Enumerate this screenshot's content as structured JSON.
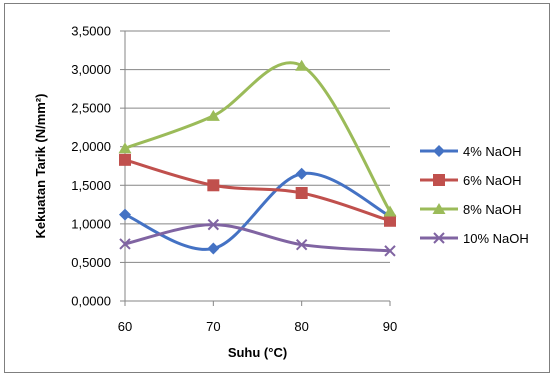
{
  "chart_data": {
    "type": "line",
    "title": "",
    "xlabel": "Suhu (°C)",
    "ylabel": "Kekuatan Tarik (N/mm²)",
    "categories": [
      "60",
      "70",
      "80",
      "90"
    ],
    "x_values": [
      60,
      70,
      80,
      90
    ],
    "ylim": [
      0,
      3.5
    ],
    "yticks": [
      0,
      0.5,
      1.0,
      1.5,
      2.0,
      2.5,
      3.0,
      3.5
    ],
    "ytick_labels": [
      "0,0000",
      "0,5000",
      "1,0000",
      "1,5000",
      "2,0000",
      "2,5000",
      "3,0000",
      "3,5000"
    ],
    "grid": true,
    "smooth": true,
    "legend_position": "right",
    "series": [
      {
        "name": "4% NaOH",
        "color": "#4472C4",
        "marker": "diamond",
        "values": [
          1.12,
          0.68,
          1.65,
          1.1
        ]
      },
      {
        "name": "6% NaOH",
        "color": "#C0504D",
        "marker": "square",
        "values": [
          1.83,
          1.5,
          1.4,
          1.04
        ]
      },
      {
        "name": "8% NaOH",
        "color": "#9BBB59",
        "marker": "triangle",
        "values": [
          1.98,
          2.4,
          3.05,
          1.16
        ]
      },
      {
        "name": "10% NaOH",
        "color": "#8064A2",
        "marker": "x",
        "values": [
          0.74,
          0.99,
          0.73,
          0.65
        ]
      }
    ]
  }
}
